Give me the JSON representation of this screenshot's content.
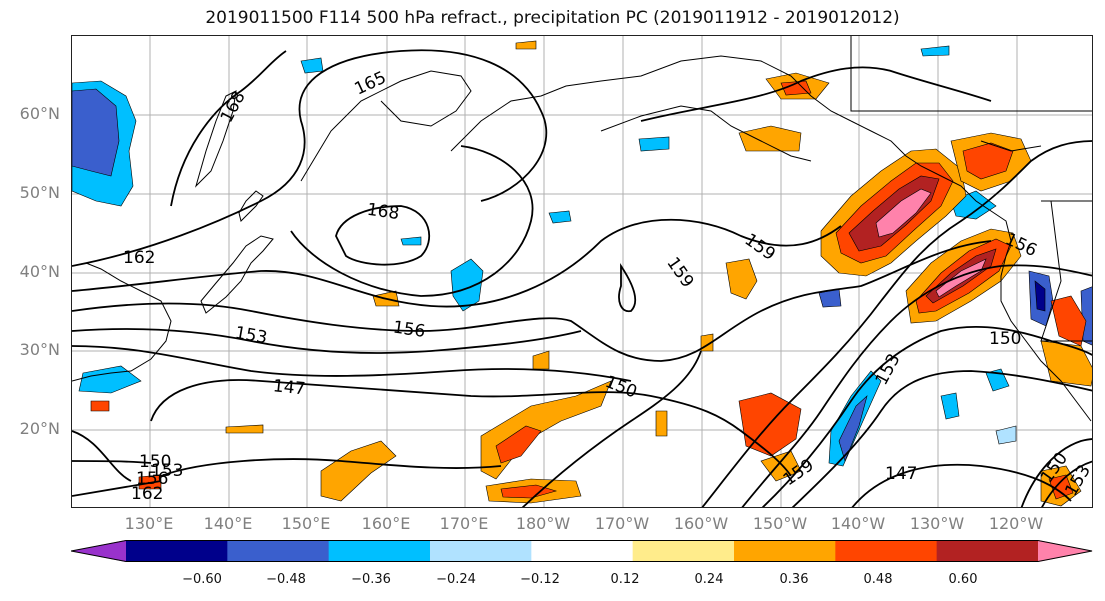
{
  "title": "2019011500 F114 500 hPa refract., precipitation PC (2019011912 - 2019012012)",
  "lat_labels": [
    "60°N",
    "50°N",
    "40°N",
    "30°N",
    "20°N"
  ],
  "lon_labels": [
    "130°E",
    "140°E",
    "150°E",
    "160°E",
    "170°E",
    "180°W",
    "170°W",
    "160°W",
    "150°W",
    "140°W",
    "130°W",
    "120°W"
  ],
  "contour_labels": [
    "168",
    "165",
    "168",
    "162",
    "153",
    "156",
    "159",
    "159",
    "147",
    "150",
    "153",
    "156",
    "150",
    "159",
    "147",
    "150",
    "153",
    "150",
    "156",
    "153",
    "162"
  ],
  "colorbar": {
    "ticks": [
      "−0.60",
      "−0.48",
      "−0.36",
      "−0.24",
      "−0.12",
      "0.12",
      "0.24",
      "0.36",
      "0.48",
      "0.60"
    ],
    "colors": [
      "#9932cc",
      "#00008b",
      "#3a5fcd",
      "#00bfff",
      "#b0e2ff",
      "#ffffff",
      "#ffec8b",
      "#ffa500",
      "#ff4500",
      "#b22222",
      "#ff82ab"
    ]
  },
  "colors": {
    "pink": "#ff82ab",
    "darkred": "#b22222",
    "red": "#ff4500",
    "orange": "#ffa500",
    "yellow": "#ffec8b",
    "lightblue": "#b0e2ff",
    "blue": "#00bfff",
    "royal": "#3a5fcd",
    "navy": "#00008b"
  }
}
